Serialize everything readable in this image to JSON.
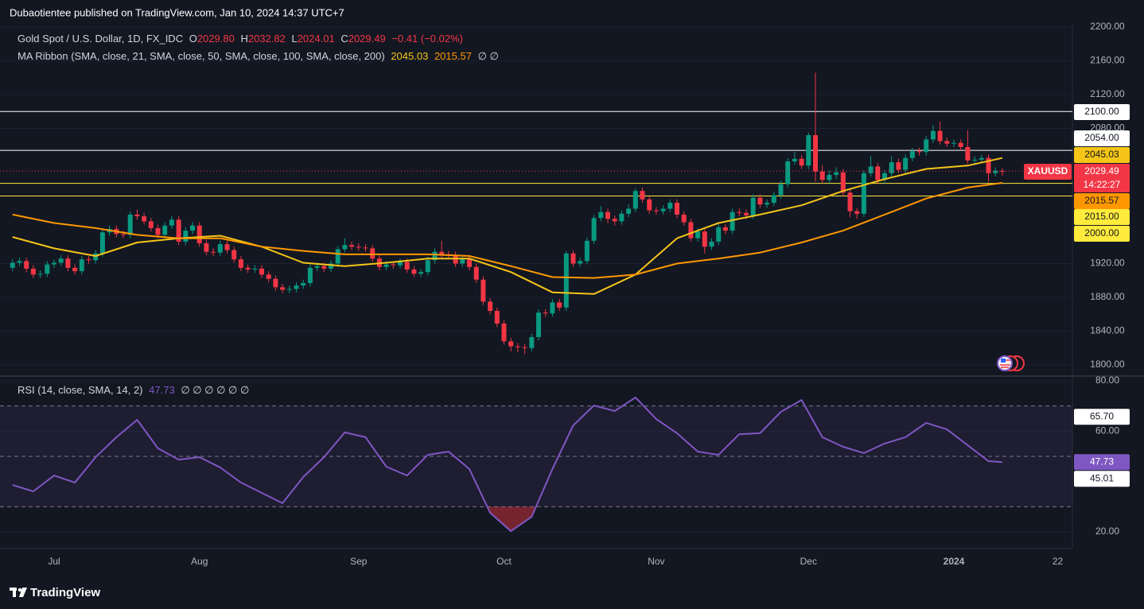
{
  "header": {
    "published": "Dubaotientee published on TradingView.com, Jan 10, 2024 14:37 UTC+7"
  },
  "footer": {
    "brand": "TradingView"
  },
  "chart_data": [
    {
      "type": "candlestick",
      "legend": {
        "name": "Gold Spot / U.S. Dollar, 1D, FX_IDC",
        "o": "O",
        "open": "2029.80",
        "h": "H",
        "high": "2032.82",
        "l": "L",
        "low": "2024.01",
        "c": "C",
        "close": "2029.49",
        "change": "−0.41 (−0.02%)"
      },
      "indicator": {
        "name": "MA Ribbon (SMA, close, 21, SMA, close, 50, SMA, close, 100, SMA, close, 200)",
        "empty": "∅ ∅"
      },
      "up_color": "#089981",
      "down_color": "#f23645",
      "categories": [
        null,
        null,
        null,
        null,
        null,
        null,
        "Jul",
        null,
        null,
        null,
        null,
        null,
        null,
        null,
        null,
        null,
        null,
        null,
        null,
        null,
        null,
        null,
        null,
        null,
        null,
        null,
        null,
        "Aug",
        null,
        null,
        null,
        null,
        null,
        null,
        null,
        null,
        null,
        null,
        null,
        null,
        null,
        null,
        null,
        null,
        null,
        null,
        null,
        null,
        null,
        null,
        "Sep",
        null,
        null,
        null,
        null,
        null,
        null,
        null,
        null,
        null,
        null,
        null,
        null,
        null,
        null,
        null,
        null,
        null,
        null,
        null,
        null,
        "Oct",
        null,
        null,
        null,
        null,
        null,
        null,
        null,
        null,
        null,
        null,
        null,
        null,
        null,
        null,
        null,
        null,
        null,
        null,
        null,
        null,
        null,
        "Nov",
        null,
        null,
        null,
        null,
        null,
        null,
        null,
        null,
        null,
        null,
        null,
        null,
        null,
        null,
        null,
        null,
        null,
        null,
        null,
        null,
        null,
        "Dec",
        null,
        null,
        null,
        null,
        null,
        null,
        null,
        null,
        null,
        null,
        null,
        null,
        null,
        null,
        null,
        null,
        null,
        null,
        null,
        null,
        "2024",
        null,
        null,
        null,
        null,
        null,
        null,
        null,
        null,
        null,
        null,
        null,
        null,
        null,
        null,
        "22",
        null,
        null
      ],
      "open": [
        1915,
        1921,
        1923,
        1914,
        1907,
        1908,
        1919,
        1921,
        1926,
        1915,
        1911,
        1925,
        1924,
        1932,
        1957,
        1961,
        1955,
        1954,
        1978,
        1976,
        1970,
        1962,
        1954,
        1965,
        1972,
        1946,
        1959,
        1965,
        1944,
        1934,
        1933,
        1943,
        1936,
        1925,
        1915,
        1913,
        1914,
        1907,
        1902,
        1892,
        1889,
        1890,
        1894,
        1897,
        1915,
        1917,
        1914,
        1920,
        1937,
        1942,
        1940,
        1939,
        1938,
        1926,
        1916,
        1919,
        1918,
        1922,
        1913,
        1908,
        1910,
        1924,
        1934,
        1931,
        1930,
        1920,
        1925,
        1916,
        1901,
        1875,
        1864,
        1849,
        1828,
        1822,
        1821,
        1820,
        1833,
        1862,
        1861,
        1874,
        1868,
        1932,
        1920,
        1923,
        1947,
        1974,
        1981,
        1973,
        1970,
        1979,
        1985,
        2006,
        1996,
        1983,
        1982,
        1985,
        1992,
        1978,
        1969,
        1950,
        1958,
        1940,
        1946,
        1963,
        1959,
        1981,
        1980,
        1977,
        1998,
        1990,
        1992,
        2001,
        2014,
        2041,
        2044,
        2036,
        2072,
        2029,
        2019,
        2025,
        2028,
        2004,
        1982,
        1979,
        2027,
        2035,
        2019,
        2027,
        2040,
        2031,
        2045,
        2053,
        2052,
        2067,
        2077,
        2065,
        2062,
        2063,
        2058,
        2042,
        2043,
        2045,
        2027,
        2029.8,
        null,
        null,
        null,
        null,
        null,
        null,
        null,
        null,
        null,
        null
      ],
      "high": [
        1925,
        1927,
        1927,
        1918,
        1912,
        1923,
        1925,
        1930,
        1930,
        1919,
        1929,
        1929,
        1936,
        1961,
        1965,
        1965,
        1959,
        1982,
        1984,
        1980,
        1974,
        1966,
        1969,
        1976,
        1976,
        1963,
        1969,
        1969,
        1948,
        1938,
        1947,
        1947,
        1940,
        1929,
        1919,
        1918,
        1918,
        1911,
        1906,
        1896,
        1894,
        1898,
        1901,
        1919,
        1921,
        1921,
        1924,
        1941,
        1950,
        1946,
        1944,
        1943,
        1942,
        1930,
        1923,
        1923,
        1926,
        1926,
        1917,
        1914,
        1928,
        1938,
        1947,
        1935,
        1934,
        1929,
        1929,
        1920,
        1905,
        1879,
        1868,
        1853,
        1832,
        1826,
        1825,
        1837,
        1866,
        1866,
        1878,
        1878,
        1935,
        1936,
        1927,
        1951,
        1978,
        1988,
        1985,
        1977,
        1983,
        1990,
        2009,
        2010,
        2000,
        1987,
        1989,
        1996,
        1996,
        1982,
        1973,
        1962,
        1962,
        1950,
        1967,
        1967,
        1985,
        1985,
        1984,
        2002,
        2002,
        1996,
        2005,
        2018,
        2045,
        2052,
        2048,
        2075,
        2146,
        2036,
        2030,
        2034,
        2032,
        2008,
        1986,
        2030,
        2047,
        2039,
        2031,
        2047,
        2044,
        2049,
        2057,
        2057,
        2071,
        2084,
        2088,
        2069,
        2067,
        2067,
        2078,
        2047,
        2049,
        2049,
        2034,
        2032.82,
        null,
        null,
        null,
        null,
        null,
        null,
        null,
        null,
        null,
        null
      ],
      "low": [
        1911,
        1917,
        1910,
        1903,
        1903,
        1904,
        1915,
        1917,
        1911,
        1907,
        1907,
        1920,
        1920,
        1928,
        1953,
        1951,
        1950,
        1950,
        1972,
        1966,
        1958,
        1950,
        1950,
        1961,
        1942,
        1942,
        1955,
        1940,
        1930,
        1929,
        1929,
        1932,
        1921,
        1911,
        1909,
        1909,
        1903,
        1898,
        1888,
        1885,
        1885,
        1886,
        1890,
        1893,
        1911,
        1910,
        1910,
        1916,
        1933,
        1936,
        1935,
        1934,
        1922,
        1912,
        1912,
        1914,
        1914,
        1909,
        1904,
        1904,
        1906,
        1920,
        1927,
        1926,
        1916,
        1916,
        1912,
        1897,
        1871,
        1860,
        1845,
        1824,
        1816,
        1815,
        1813,
        1816,
        1829,
        1857,
        1857,
        1864,
        1864,
        1916,
        1916,
        1919,
        1943,
        1970,
        1968,
        1965,
        1966,
        1975,
        1981,
        1992,
        1979,
        1978,
        1978,
        1981,
        1974,
        1965,
        1946,
        1946,
        1932,
        1936,
        1942,
        1955,
        1955,
        1976,
        1973,
        1973,
        1986,
        1986,
        1988,
        1997,
        2010,
        2037,
        2032,
        2032,
        2017,
        2015,
        2015,
        2020,
        2000,
        1975,
        1973,
        1975,
        2023,
        2015,
        2015,
        2023,
        2027,
        2027,
        2041,
        2048,
        2048,
        2063,
        2061,
        2058,
        2058,
        2054,
        2038,
        2038,
        2039,
        2017,
        2023,
        2024.01,
        null,
        null,
        null,
        null,
        null,
        null,
        null,
        null,
        null,
        null
      ],
      "close": [
        1921,
        1923,
        1914,
        1907,
        1908,
        1919,
        1921,
        1926,
        1915,
        1911,
        1925,
        1924,
        1932,
        1957,
        1961,
        1955,
        1954,
        1978,
        1976,
        1970,
        1962,
        1954,
        1965,
        1972,
        1946,
        1959,
        1965,
        1944,
        1934,
        1933,
        1943,
        1936,
        1925,
        1915,
        1913,
        1914,
        1907,
        1902,
        1892,
        1889,
        1890,
        1894,
        1897,
        1915,
        1917,
        1914,
        1920,
        1937,
        1942,
        1940,
        1939,
        1938,
        1926,
        1916,
        1919,
        1918,
        1922,
        1913,
        1908,
        1910,
        1924,
        1934,
        1931,
        1930,
        1920,
        1925,
        1916,
        1901,
        1875,
        1864,
        1849,
        1828,
        1822,
        1821,
        1820,
        1833,
        1862,
        1861,
        1874,
        1868,
        1932,
        1920,
        1923,
        1947,
        1974,
        1981,
        1973,
        1970,
        1979,
        1985,
        2006,
        1996,
        1983,
        1982,
        1985,
        1992,
        1978,
        1969,
        1950,
        1958,
        1940,
        1946,
        1963,
        1959,
        1981,
        1980,
        1977,
        1998,
        1990,
        1992,
        2001,
        2014,
        2041,
        2044,
        2036,
        2072,
        2029,
        2019,
        2025,
        2028,
        2004,
        1982,
        1979,
        2027,
        2035,
        2019,
        2027,
        2040,
        2031,
        2045,
        2053,
        2052,
        2067,
        2077,
        2065,
        2062,
        2063,
        2058,
        2042,
        2043,
        2045,
        2027,
        2030,
        2029.49,
        null,
        null,
        null,
        null,
        null,
        null,
        null,
        null,
        null,
        null
      ],
      "series": [
        {
          "color": "#f5c518",
          "last_label": "2045.03",
          "x": [
            0,
            6,
            12,
            18,
            24,
            30,
            36,
            42,
            48,
            54,
            60,
            66,
            72,
            78,
            84,
            90,
            96,
            102,
            108,
            114,
            120,
            126,
            132,
            138,
            143
          ],
          "values": [
            1951.5,
            1938,
            1929,
            1945,
            1950,
            1953,
            1940,
            1921,
            1917,
            1921,
            1926,
            1926,
            1910,
            1886,
            1884,
            1907,
            1950,
            1968,
            1978,
            1989,
            2006,
            2020,
            2032,
            2036,
            2045.03
          ]
        },
        {
          "color": "#ff9800",
          "last_label": "2015.57",
          "x": [
            0,
            6,
            12,
            18,
            24,
            30,
            36,
            42,
            48,
            54,
            60,
            66,
            72,
            78,
            84,
            90,
            96,
            102,
            108,
            114,
            120,
            126,
            132,
            138,
            143
          ],
          "values": [
            1978,
            1968,
            1962,
            1954,
            1950,
            1950,
            1940,
            1935,
            1931,
            1931,
            1931,
            1929,
            1917,
            1904,
            1903,
            1907,
            1920,
            1926,
            1933,
            1945,
            1959,
            1978,
            1997,
            2010,
            2015.57
          ]
        }
      ],
      "levels": [
        {
          "value": 2100,
          "label": "2100.00",
          "color": "#ffffff"
        },
        {
          "value": 2054,
          "label": "2054.00",
          "color": "#ffffff"
        },
        {
          "value": 2015,
          "label": "2015.00",
          "color": "#ffeb3b"
        },
        {
          "value": 2000,
          "label": "2000.00",
          "color": "#ffeb3b"
        }
      ],
      "price_label": {
        "symbol": "XAUUSD",
        "label": "2029.49",
        "countdown": "14:22:27"
      },
      "ylim": [
        1787.8,
        2203.8
      ],
      "yticks": [
        {
          "value": 1800,
          "label": "1800.00"
        },
        {
          "value": 1840,
          "label": "1840.00"
        },
        {
          "value": 1880,
          "label": "1880.00"
        },
        {
          "value": 1920,
          "label": "1920.00"
        },
        {
          "value": 2080,
          "label": "2080.00"
        },
        {
          "value": 2120,
          "label": "2120.00"
        },
        {
          "value": 2160,
          "label": "2160.00"
        },
        {
          "value": 2200,
          "label": "2200.00"
        }
      ]
    },
    {
      "type": "line",
      "legend": {
        "name": "RSI (14, close, SMA, 14, 2)",
        "empty": "∅ ∅ ∅ ∅ ∅ ∅"
      },
      "series": [
        {
          "color": "#7e57c2",
          "last_label": "47.73",
          "x": [
            0,
            3,
            6,
            9,
            12,
            15,
            18,
            21,
            24,
            27,
            30,
            33,
            36,
            39,
            42,
            45,
            48,
            51,
            54,
            57,
            60,
            63,
            66,
            69,
            72,
            75,
            78,
            81,
            84,
            87,
            90,
            93,
            96,
            99,
            102,
            105,
            108,
            111,
            114,
            117,
            120,
            123,
            126,
            129,
            132,
            135,
            138,
            141,
            143
          ],
          "values": [
            38.6,
            36.1,
            42.4,
            39.6,
            49.7,
            57.6,
            64.5,
            53.2,
            48.7,
            49.7,
            45.6,
            39.6,
            35.5,
            31.4,
            41.8,
            49.7,
            59.5,
            57.6,
            45.9,
            42.4,
            50.6,
            51.9,
            45.0,
            27.6,
            20.3,
            26.0,
            45.0,
            62.3,
            70.2,
            68.0,
            73.4,
            64.8,
            59.2,
            51.9,
            50.6,
            58.8,
            59.2,
            67.7,
            72.4,
            57.6,
            53.8,
            51.3,
            55.1,
            57.6,
            63.3,
            60.7,
            54.4,
            48.1,
            47.73
          ]
        }
      ],
      "bands": [
        70,
        50,
        30
      ],
      "labels": [
        {
          "value": 65.7,
          "label": "65.70"
        },
        {
          "value": 45.01,
          "label": "45.01"
        }
      ],
      "ylim": [
        13.38,
        81.58
      ],
      "yticks": [
        {
          "value": 80,
          "label": "80.00"
        },
        {
          "value": 60,
          "label": "60.00"
        },
        {
          "value": 20,
          "label": "20.00"
        }
      ]
    }
  ]
}
